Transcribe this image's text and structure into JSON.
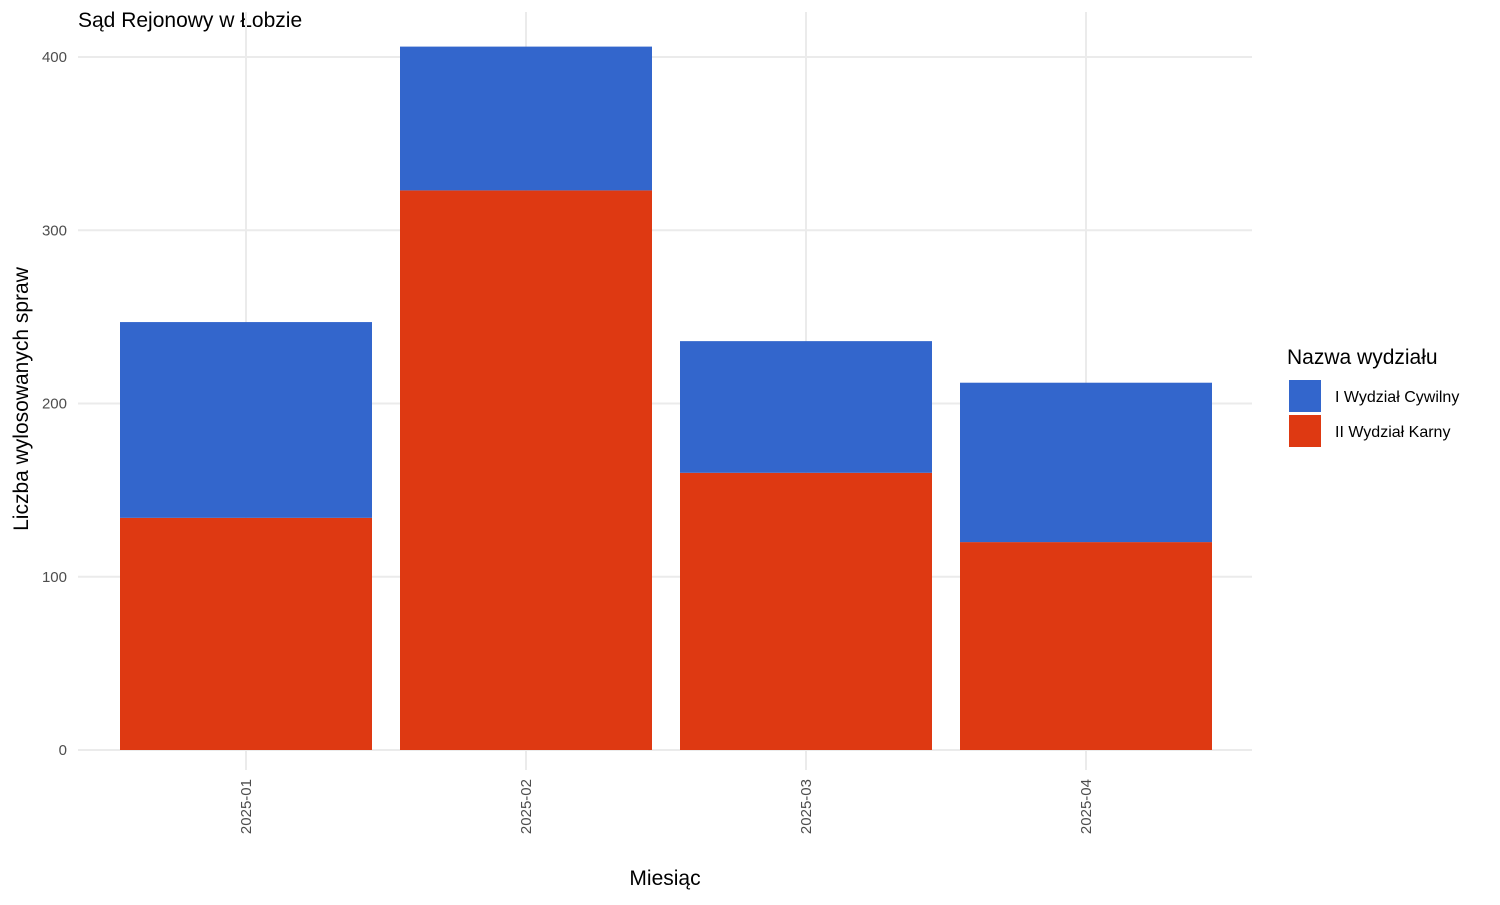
{
  "chart_data": {
    "type": "bar",
    "stacked": true,
    "title": "Sąd Rejonowy w Łobzie",
    "xlabel": "Miesiąc",
    "ylabel": "Liczba wylosowanych spraw",
    "categories": [
      "2025-01",
      "2025-02",
      "2025-03",
      "2025-04"
    ],
    "series": [
      {
        "name": "II Wydział Karny",
        "color": "#DE3912",
        "values": [
          134,
          323,
          160,
          120
        ]
      },
      {
        "name": "I Wydział Cywilny",
        "color": "#3366CC",
        "values": [
          113,
          83,
          76,
          92
        ]
      }
    ],
    "ylim": [
      0,
      420
    ],
    "yticks": [
      0,
      100,
      200,
      300,
      400
    ],
    "grid": true,
    "legend": {
      "title": "Nazwa wydziału",
      "position": "right",
      "order": [
        "I Wydział Cywilny",
        "II Wydział Karny"
      ]
    }
  }
}
